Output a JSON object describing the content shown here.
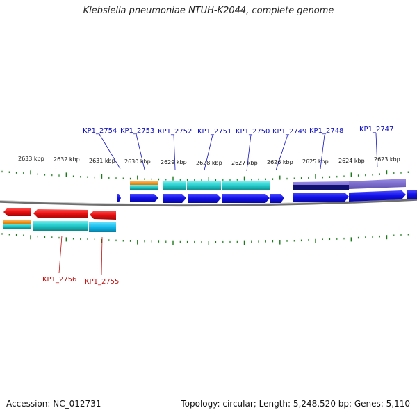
{
  "title": "Klebsiella pneumoniae NTUH-K2044, complete genome",
  "footer": {
    "accession": "Accession: NC_012731",
    "topology": "Topology: circular; Length: 5,248,520 bp; Genes: 5,110"
  },
  "tick_labels": [
    "2633 kbp",
    "2632 kbp",
    "2631 kbp",
    "2630 kbp",
    "2629 kbp",
    "2628 kbp",
    "2627 kbp",
    "2626 kbp",
    "2625 kbp",
    "2624 kbp",
    "2623 kbp"
  ],
  "gene_labels_top": [
    "KP1_2754",
    "KP1_2753",
    "KP1_2752",
    "KP1_2751",
    "KP1_2750",
    "KP1_2749",
    "KP1_2748",
    "KP1_2747"
  ],
  "gene_labels_bottom": [
    "KP1_2756",
    "KP1_2755"
  ],
  "colors": {
    "forward_cds": "#1010e8",
    "reverse_cds": "#e81010",
    "feature_cyan": "#20c8c8",
    "feature_orange": "#f08c00",
    "feature_purple": "#7a6cc8",
    "feature_navy": "#101070",
    "tick": "#1a7a1a",
    "label_top": "#1010c0",
    "label_bottom": "#c01010",
    "backbone": "#808080"
  }
}
